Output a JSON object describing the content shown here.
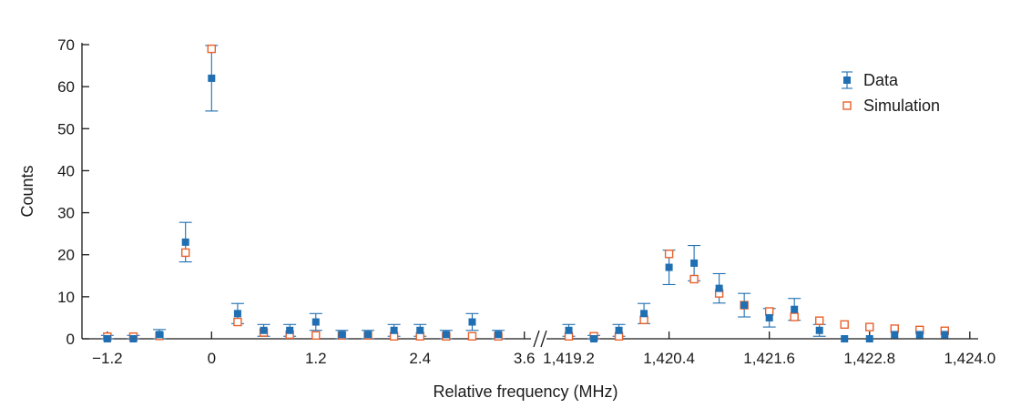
{
  "chart_data": {
    "type": "scatter",
    "title": "",
    "xlabel": "Relative frequency (MHz)",
    "ylabel": "Counts",
    "ylim": [
      0,
      70
    ],
    "yticks": [
      0,
      10,
      20,
      30,
      40,
      50,
      60,
      70
    ],
    "colors": {
      "data": "#1f6fb2",
      "simulation": "#e8612c"
    },
    "legend_position": "top-right",
    "broken_x_axis": true,
    "segments": [
      {
        "xlim": [
          -1.45,
          3.75
        ],
        "xticks": [
          -1.2,
          0,
          1.2,
          2.4,
          3.6
        ],
        "xtick_labels": [
          "−1.2",
          "0",
          "1.2",
          "2.4",
          "3.6"
        ]
      },
      {
        "xlim": [
          1418.9,
          1424.1
        ],
        "xticks": [
          1419.2,
          1420.4,
          1421.6,
          1422.8,
          1424.0
        ],
        "xtick_labels": [
          "1,419.2",
          "1,420.4",
          "1,421.6",
          "1,422.8",
          "1,424.0"
        ]
      }
    ],
    "series": [
      {
        "name": "Data",
        "marker": "filled-square",
        "points": [
          {
            "x": -1.2,
            "y": 0,
            "err": 0.8
          },
          {
            "x": -0.9,
            "y": 0,
            "err": 0.8
          },
          {
            "x": -0.6,
            "y": 1,
            "err": 1.2
          },
          {
            "x": -0.3,
            "y": 23,
            "err": 4.7
          },
          {
            "x": 0,
            "y": 62,
            "err": 7.8
          },
          {
            "x": 0.3,
            "y": 6,
            "err": 2.4
          },
          {
            "x": 0.6,
            "y": 2,
            "err": 1.4
          },
          {
            "x": 0.9,
            "y": 2,
            "err": 1.4
          },
          {
            "x": 1.2,
            "y": 4,
            "err": 2.0
          },
          {
            "x": 1.5,
            "y": 1,
            "err": 1.0
          },
          {
            "x": 1.8,
            "y": 1,
            "err": 1.0
          },
          {
            "x": 2.1,
            "y": 2,
            "err": 1.4
          },
          {
            "x": 2.4,
            "y": 2,
            "err": 1.4
          },
          {
            "x": 2.7,
            "y": 1,
            "err": 1.0
          },
          {
            "x": 3.0,
            "y": 4,
            "err": 2.0
          },
          {
            "x": 3.3,
            "y": 1,
            "err": 1.0
          },
          {
            "x": 1419.2,
            "y": 2,
            "err": 1.4
          },
          {
            "x": 1419.5,
            "y": 0,
            "err": 0.8
          },
          {
            "x": 1419.8,
            "y": 2,
            "err": 1.4
          },
          {
            "x": 1420.1,
            "y": 6,
            "err": 2.4
          },
          {
            "x": 1420.4,
            "y": 17,
            "err": 4.1
          },
          {
            "x": 1420.7,
            "y": 18,
            "err": 4.2
          },
          {
            "x": 1421.0,
            "y": 12,
            "err": 3.5
          },
          {
            "x": 1421.3,
            "y": 8,
            "err": 2.8
          },
          {
            "x": 1421.6,
            "y": 5,
            "err": 2.2
          },
          {
            "x": 1421.9,
            "y": 7,
            "err": 2.6
          },
          {
            "x": 1422.2,
            "y": 2,
            "err": 1.4
          },
          {
            "x": 1422.5,
            "y": 0,
            "err": 0
          },
          {
            "x": 1422.8,
            "y": 0,
            "err": 0
          },
          {
            "x": 1423.1,
            "y": 1,
            "err": 0
          },
          {
            "x": 1423.4,
            "y": 1,
            "err": 0
          },
          {
            "x": 1423.7,
            "y": 1,
            "err": 0
          }
        ]
      },
      {
        "name": "Simulation",
        "marker": "open-square",
        "points": [
          {
            "x": -1.2,
            "y": 0.5
          },
          {
            "x": -0.9,
            "y": 0.5
          },
          {
            "x": -0.6,
            "y": 0.7
          },
          {
            "x": -0.3,
            "y": 20.5
          },
          {
            "x": 0,
            "y": 69
          },
          {
            "x": 0.3,
            "y": 4
          },
          {
            "x": 0.6,
            "y": 1.5
          },
          {
            "x": 0.9,
            "y": 1
          },
          {
            "x": 1.2,
            "y": 0.8
          },
          {
            "x": 1.5,
            "y": 0.8
          },
          {
            "x": 1.8,
            "y": 0.8
          },
          {
            "x": 2.1,
            "y": 0.6
          },
          {
            "x": 2.4,
            "y": 0.6
          },
          {
            "x": 2.7,
            "y": 0.6
          },
          {
            "x": 3.0,
            "y": 0.6
          },
          {
            "x": 3.3,
            "y": 0.6
          },
          {
            "x": 1419.2,
            "y": 0.6
          },
          {
            "x": 1419.5,
            "y": 0.6
          },
          {
            "x": 1419.8,
            "y": 0.6
          },
          {
            "x": 1420.1,
            "y": 4.5
          },
          {
            "x": 1420.4,
            "y": 20.2
          },
          {
            "x": 1420.7,
            "y": 14.2
          },
          {
            "x": 1421.0,
            "y": 10.8
          },
          {
            "x": 1421.3,
            "y": 8
          },
          {
            "x": 1421.6,
            "y": 6.5
          },
          {
            "x": 1421.9,
            "y": 5.2
          },
          {
            "x": 1422.2,
            "y": 4.3
          },
          {
            "x": 1422.5,
            "y": 3.4
          },
          {
            "x": 1422.8,
            "y": 2.8
          },
          {
            "x": 1423.1,
            "y": 2.4
          },
          {
            "x": 1423.4,
            "y": 2.1
          },
          {
            "x": 1423.7,
            "y": 1.9
          }
        ]
      }
    ]
  }
}
